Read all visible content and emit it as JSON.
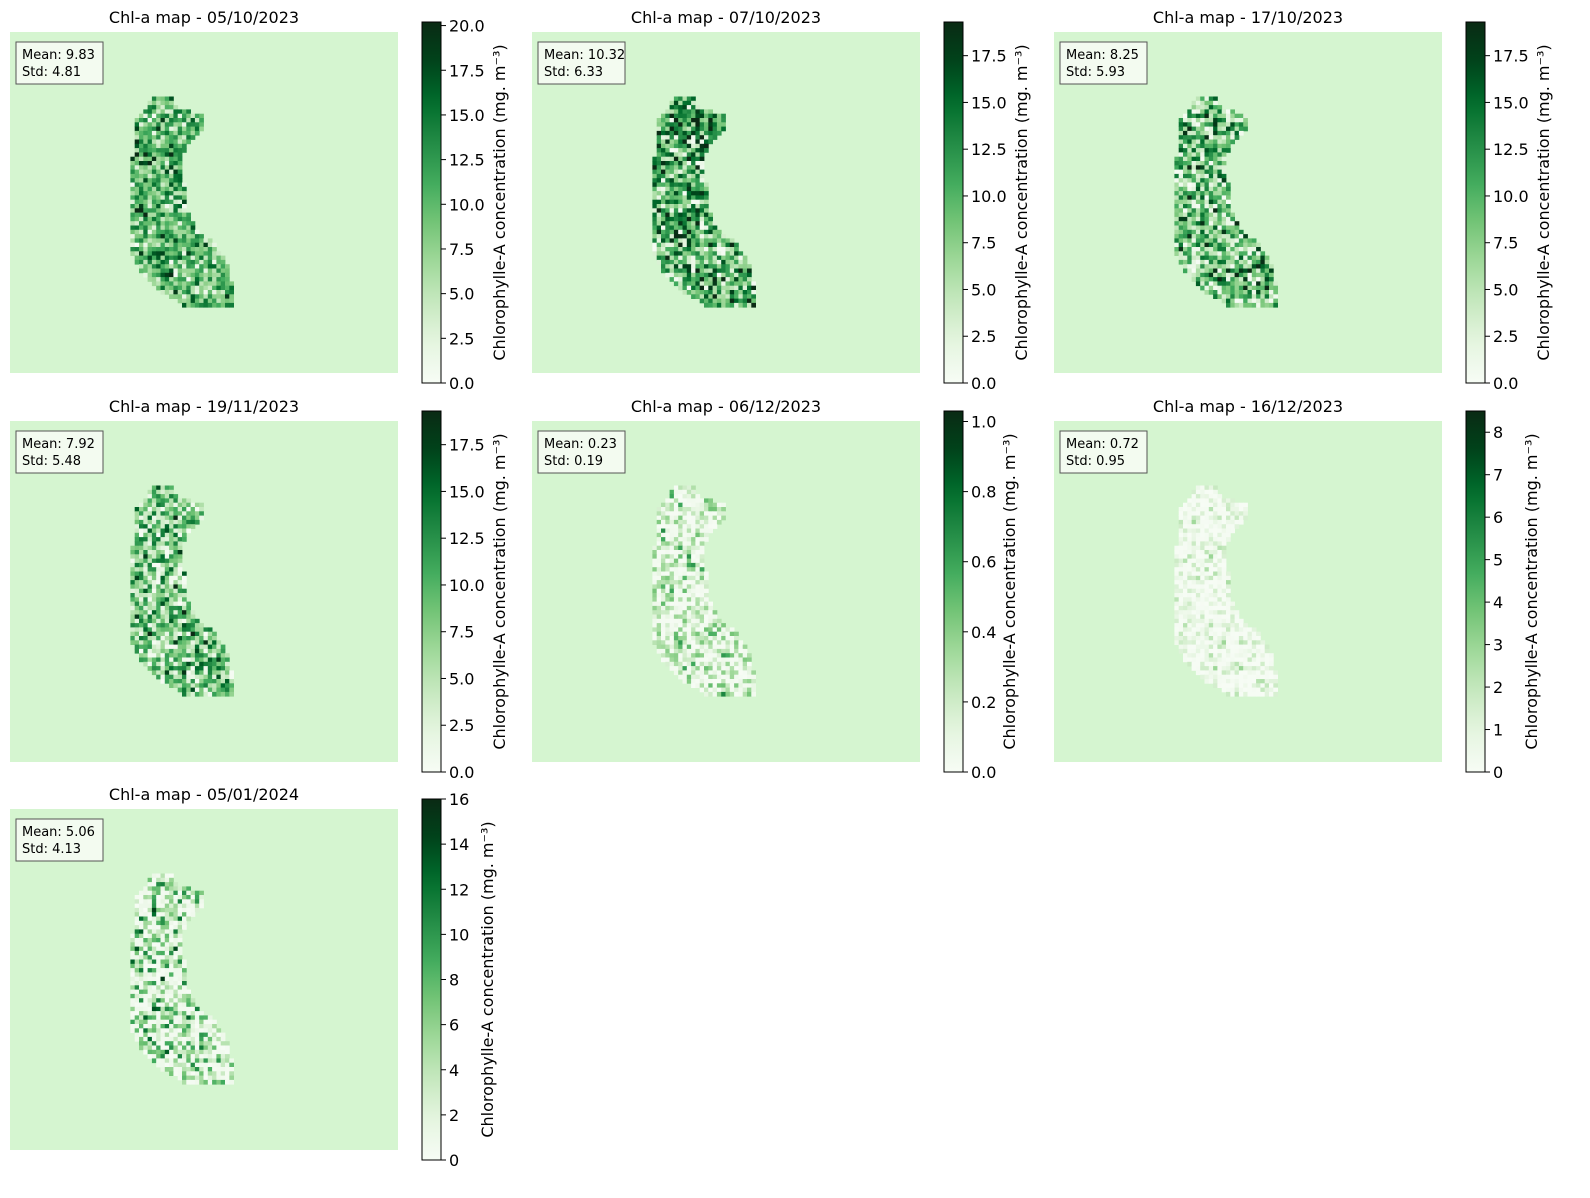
{
  "chart_data": [
    {
      "type": "heatmap",
      "title": "Chl-a map - 05/10/2023",
      "stats": {
        "mean": "Mean: 9.83",
        "std": "Std: 4.81"
      },
      "colorbar": {
        "label": "Chlorophylle-A concentration",
        "unit": "(mg. m⁻³)",
        "min": 0,
        "max": 20.2,
        "ticks": [
          "0.0",
          "2.5",
          "5.0",
          "7.5",
          "10.0",
          "12.5",
          "15.0",
          "17.5",
          "20.0"
        ],
        "tick_values": [
          0,
          2.5,
          5,
          7.5,
          10,
          12.5,
          15,
          17.5,
          20
        ]
      },
      "pattern": {
        "mean": 9.83,
        "std": 4.81,
        "bias": 0.0
      }
    },
    {
      "type": "heatmap",
      "title": "Chl-a map - 07/10/2023",
      "stats": {
        "mean": "Mean: 10.32",
        "std": "Std: 6.33"
      },
      "colorbar": {
        "label": "Chlorophylle-A concentration",
        "unit": "(mg. m⁻³)",
        "min": 0,
        "max": 19.3,
        "ticks": [
          "0.0",
          "2.5",
          "5.0",
          "7.5",
          "10.0",
          "12.5",
          "15.0",
          "17.5"
        ],
        "tick_values": [
          0,
          2.5,
          5,
          7.5,
          10,
          12.5,
          15,
          17.5
        ]
      },
      "pattern": {
        "mean": 10.32,
        "std": 6.33,
        "bias": 0.25
      }
    },
    {
      "type": "heatmap",
      "title": "Chl-a map - 17/10/2023",
      "stats": {
        "mean": "Mean: 8.25",
        "std": "Std: 5.93"
      },
      "colorbar": {
        "label": "Chlorophylle-A concentration",
        "unit": "(mg. m⁻³)",
        "min": 0,
        "max": 19.3,
        "ticks": [
          "0.0",
          "2.5",
          "5.0",
          "7.5",
          "10.0",
          "12.5",
          "15.0",
          "17.5"
        ],
        "tick_values": [
          0,
          2.5,
          5,
          7.5,
          10,
          12.5,
          15,
          17.5
        ]
      },
      "pattern": {
        "mean": 8.25,
        "std": 5.93,
        "bias": 0.15
      }
    },
    {
      "type": "heatmap",
      "title": "Chl-a map - 19/11/2023",
      "stats": {
        "mean": "Mean: 7.92",
        "std": "Std: 5.48"
      },
      "colorbar": {
        "label": "Chlorophylle-A concentration",
        "unit": "(mg. m⁻³)",
        "min": 0,
        "max": 19.3,
        "ticks": [
          "0.0",
          "2.5",
          "5.0",
          "7.5",
          "10.0",
          "12.5",
          "15.0",
          "17.5"
        ],
        "tick_values": [
          0,
          2.5,
          5,
          7.5,
          10,
          12.5,
          15,
          17.5
        ]
      },
      "pattern": {
        "mean": 7.92,
        "std": 5.48,
        "bias": 0.1
      }
    },
    {
      "type": "heatmap",
      "title": "Chl-a map - 06/12/2023",
      "stats": {
        "mean": "Mean: 0.23",
        "std": "Std: 0.19"
      },
      "colorbar": {
        "label": "Chlorophylle-A concentration",
        "unit": "(mg. m⁻³)",
        "min": 0,
        "max": 1.03,
        "ticks": [
          "0.0",
          "0.2",
          "0.4",
          "0.6",
          "0.8",
          "1.0"
        ],
        "tick_values": [
          0,
          0.2,
          0.4,
          0.6,
          0.8,
          1.0
        ]
      },
      "pattern": {
        "mean": 0.23,
        "std": 0.19,
        "bias": -0.1
      }
    },
    {
      "type": "heatmap",
      "title": "Chl-a map - 16/12/2023",
      "stats": {
        "mean": "Mean: 0.72",
        "std": "Std: 0.95"
      },
      "colorbar": {
        "label": "Chlorophylle-A concentration",
        "unit": "(mg. m⁻³)",
        "min": 0,
        "max": 8.5,
        "ticks": [
          "0",
          "1",
          "2",
          "3",
          "4",
          "5",
          "6",
          "7",
          "8"
        ],
        "tick_values": [
          0,
          1,
          2,
          3,
          4,
          5,
          6,
          7,
          8
        ]
      },
      "pattern": {
        "mean": 0.72,
        "std": 0.95,
        "bias": -0.2
      }
    },
    {
      "type": "heatmap",
      "title": "Chl-a map - 05/01/2024",
      "stats": {
        "mean": "Mean: 5.06",
        "std": "Std: 4.13"
      },
      "colorbar": {
        "label": "Chlorophylle-A concentration",
        "unit": "(mg. m⁻³)",
        "min": 0,
        "max": 16,
        "ticks": [
          "0",
          "2",
          "4",
          "6",
          "8",
          "10",
          "12",
          "14",
          "16"
        ],
        "tick_values": [
          0,
          2,
          4,
          6,
          8,
          10,
          12,
          14,
          16
        ]
      },
      "pattern": {
        "mean": 5.06,
        "std": 4.13,
        "bias": 0.0
      }
    }
  ],
  "colormap": "Greens",
  "colormap_stops": [
    "#f7fcf5",
    "#e5f5e0",
    "#c7e9c0",
    "#a1d99b",
    "#74c476",
    "#41ab5d",
    "#238b45",
    "#006d2c",
    "#00441b",
    "#0a2a14"
  ],
  "background_color": "#d5f5d0"
}
